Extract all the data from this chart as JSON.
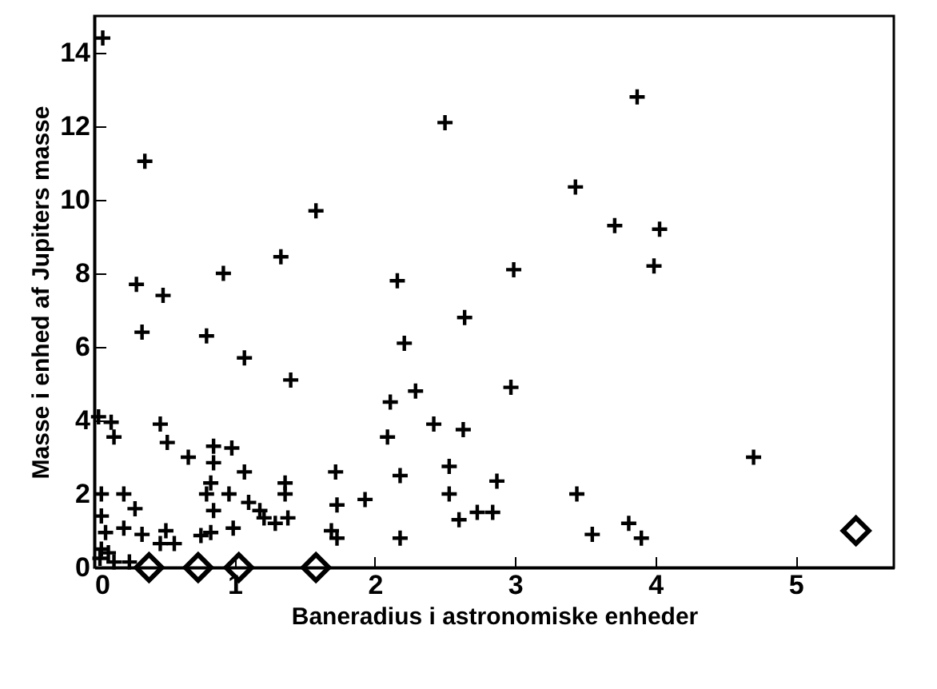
{
  "chart_data": {
    "type": "scatter",
    "xlabel": "Baneradius i astronomiske enheder",
    "ylabel": "Masse i enhed af Jupiters masse",
    "xlim": [
      0,
      5.7
    ],
    "ylim": [
      0,
      15
    ],
    "xticks": [
      0,
      1,
      2,
      3,
      4,
      5
    ],
    "yticks": [
      0,
      2,
      4,
      6,
      8,
      10,
      12,
      14
    ],
    "grid": false,
    "series": [
      {
        "color": "#000000",
        "marker": "cross",
        "x": [
          0.06,
          0.36,
          1.58,
          1.33,
          0.92,
          0.3,
          0.49,
          2.5,
          2.16,
          2.64,
          3.87,
          3.43,
          3.71,
          4.03,
          2.99,
          3.99,
          0.34,
          0.8,
          1.07,
          1.4,
          2.21,
          2.29,
          2.11,
          2.42,
          2.63,
          2.09,
          2.53,
          2.18,
          2.53,
          1.93,
          1.73,
          1.72,
          2.18,
          2.6,
          2.73,
          2.84,
          2.87,
          2.97,
          3.44,
          3.55,
          3.81,
          3.9,
          4.7,
          0.03,
          0.12,
          0.14,
          0.05,
          0.21,
          0.29,
          0.05,
          0.08,
          0.21,
          0.34,
          0.51,
          0.47,
          0.57,
          0.05,
          0.1,
          0.04,
          0.14,
          0.25,
          0.47,
          0.52,
          0.67,
          0.85,
          0.98,
          0.85,
          1.07,
          0.83,
          0.8,
          0.96,
          0.85,
          1.1,
          1.18,
          1.21,
          1.29,
          1.36,
          1.36,
          1.38,
          0.99,
          0.83,
          0.76,
          1.69,
          1.73
        ],
        "values": [
          14.4,
          11.05,
          9.7,
          8.45,
          8.0,
          7.7,
          7.4,
          12.1,
          7.8,
          6.8,
          12.8,
          10.35,
          9.3,
          9.2,
          8.1,
          8.2,
          6.4,
          6.3,
          5.7,
          5.1,
          6.1,
          4.8,
          4.5,
          3.9,
          3.75,
          3.55,
          2.75,
          2.5,
          2.0,
          1.85,
          1.7,
          2.6,
          0.8,
          1.3,
          1.5,
          1.5,
          2.35,
          4.9,
          2.0,
          0.9,
          1.2,
          0.8,
          3.0,
          4.1,
          3.95,
          3.55,
          2.0,
          2.0,
          1.6,
          1.4,
          0.95,
          1.07,
          0.9,
          1.0,
          0.65,
          0.65,
          0.5,
          0.4,
          0.25,
          0.15,
          0.15,
          3.9,
          3.4,
          3.0,
          3.3,
          3.25,
          2.85,
          2.6,
          2.3,
          2.0,
          2.0,
          1.55,
          1.77,
          1.55,
          1.35,
          1.2,
          2.3,
          2.0,
          1.35,
          1.07,
          0.95,
          0.87,
          1.0,
          0.8
        ]
      },
      {
        "color": "#000000",
        "marker": "diamond",
        "x": [
          0.39,
          0.74,
          1.03,
          1.58,
          5.43
        ],
        "values": [
          0,
          0,
          0,
          0,
          1.0
        ]
      }
    ]
  }
}
